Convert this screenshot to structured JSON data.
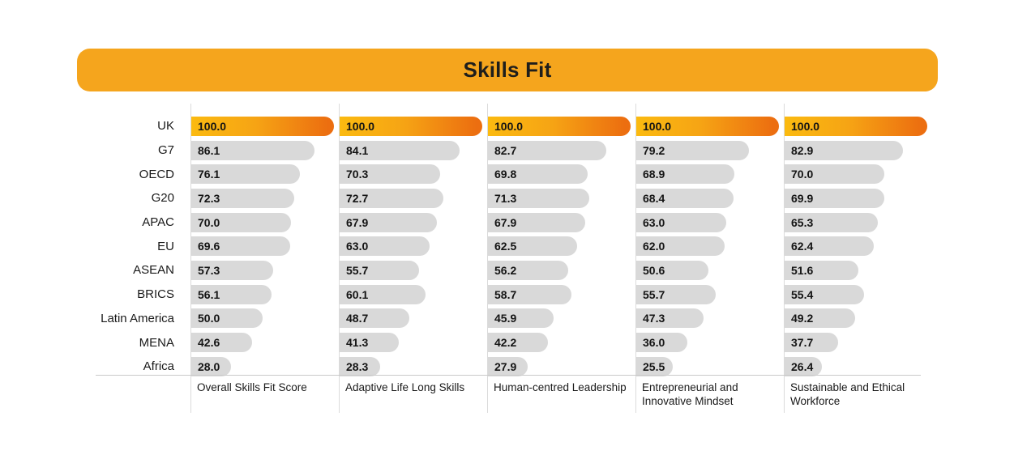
{
  "title": "Skills Fit",
  "colors": {
    "banner": "#F5A51D",
    "bar_gray": "#D9D9D9",
    "uk_gradient_start": "#FBBA10",
    "uk_gradient_end": "#EC6E10",
    "text": "#1A1A1A",
    "rule": "#C9C9C9"
  },
  "chart_data": {
    "type": "bar",
    "orientation": "horizontal",
    "title": "Skills Fit",
    "value_range": [
      0,
      100
    ],
    "value_format": "1-decimal",
    "highlighted_category": "UK",
    "categories": [
      "UK",
      "G7",
      "OECD",
      "G20",
      "APAC",
      "EU",
      "ASEAN",
      "BRICS",
      "Latin America",
      "MENA",
      "Africa"
    ],
    "series": [
      {
        "name": "Overall Skills Fit Score",
        "values": [
          100.0,
          86.1,
          76.1,
          72.3,
          70.0,
          69.6,
          57.3,
          56.1,
          50.0,
          42.6,
          28.0
        ]
      },
      {
        "name": "Adaptive Life Long Skills",
        "values": [
          100.0,
          84.1,
          70.3,
          72.7,
          67.9,
          63.0,
          55.7,
          60.1,
          48.7,
          41.3,
          28.3
        ]
      },
      {
        "name": "Human-centred Leadership",
        "values": [
          100.0,
          82.7,
          69.8,
          71.3,
          67.9,
          62.5,
          56.2,
          58.7,
          45.9,
          42.2,
          27.9
        ]
      },
      {
        "name": "Entrepreneurial and Innovative Mindset",
        "values": [
          100.0,
          79.2,
          68.9,
          68.4,
          63.0,
          62.0,
          50.6,
          55.7,
          47.3,
          36.0,
          25.5
        ]
      },
      {
        "name": "Sustainable and Ethical Workforce",
        "values": [
          100.0,
          82.9,
          70.0,
          69.9,
          65.3,
          62.4,
          51.6,
          55.4,
          49.2,
          37.7,
          26.4
        ]
      }
    ],
    "legend": "none",
    "grid": "column separators and bottom rule only"
  }
}
